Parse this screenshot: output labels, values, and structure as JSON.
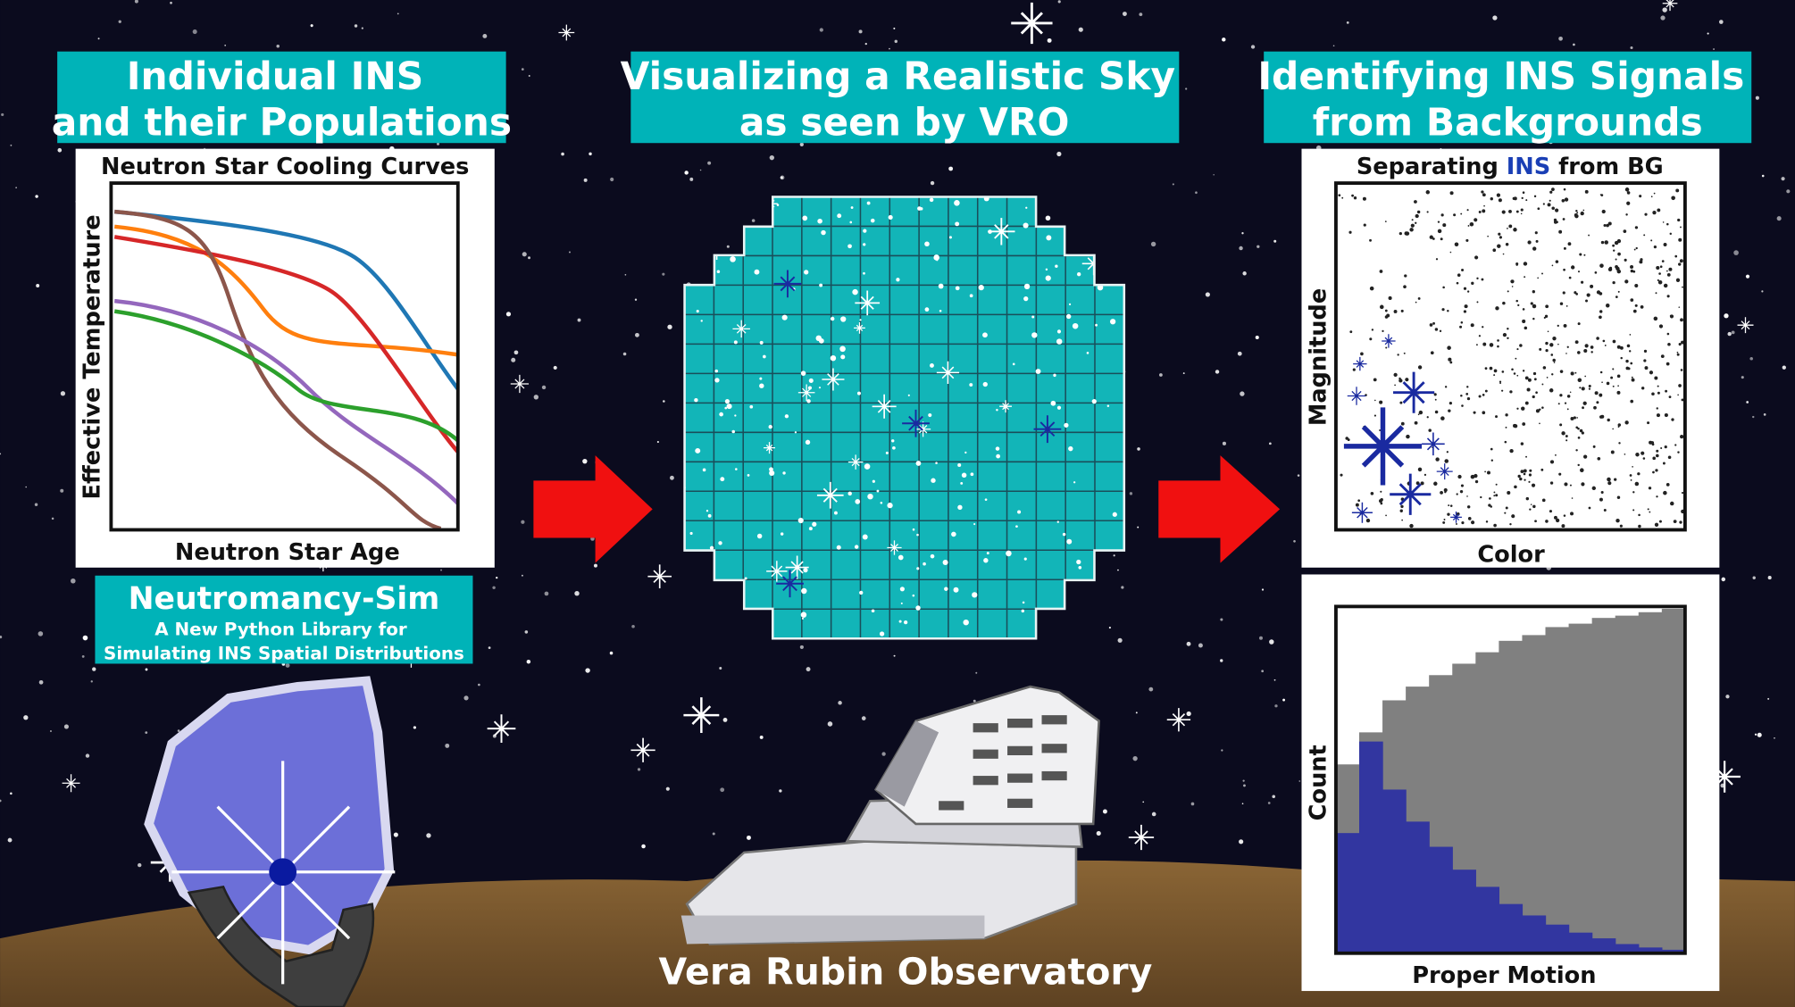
{
  "left": {
    "header": [
      "Individual INS",
      "and their Populations"
    ],
    "plot": {
      "title": "Neutron Star Cooling Curves",
      "xlabel": "Neutron Star Age",
      "ylabel": "Effective Temperature"
    },
    "library": {
      "name": "Neutromancy-Sim",
      "description": [
        "A New Python Library for",
        "Simulating INS Spatial Distributions"
      ]
    }
  },
  "middle": {
    "header": [
      "Visualizing a Realistic Sky",
      "as seen by VRO"
    ],
    "caption": "Vera Rubin Observatory"
  },
  "right": {
    "header": [
      "Identifying INS Signals",
      "from Backgrounds"
    ],
    "scatter": {
      "title": [
        "Separating ",
        "INS",
        " from BG"
      ],
      "xlabel": "Color",
      "ylabel": "Magnitude"
    },
    "histogram": {
      "xlabel": "Proper Motion",
      "ylabel": "Count"
    }
  }
}
